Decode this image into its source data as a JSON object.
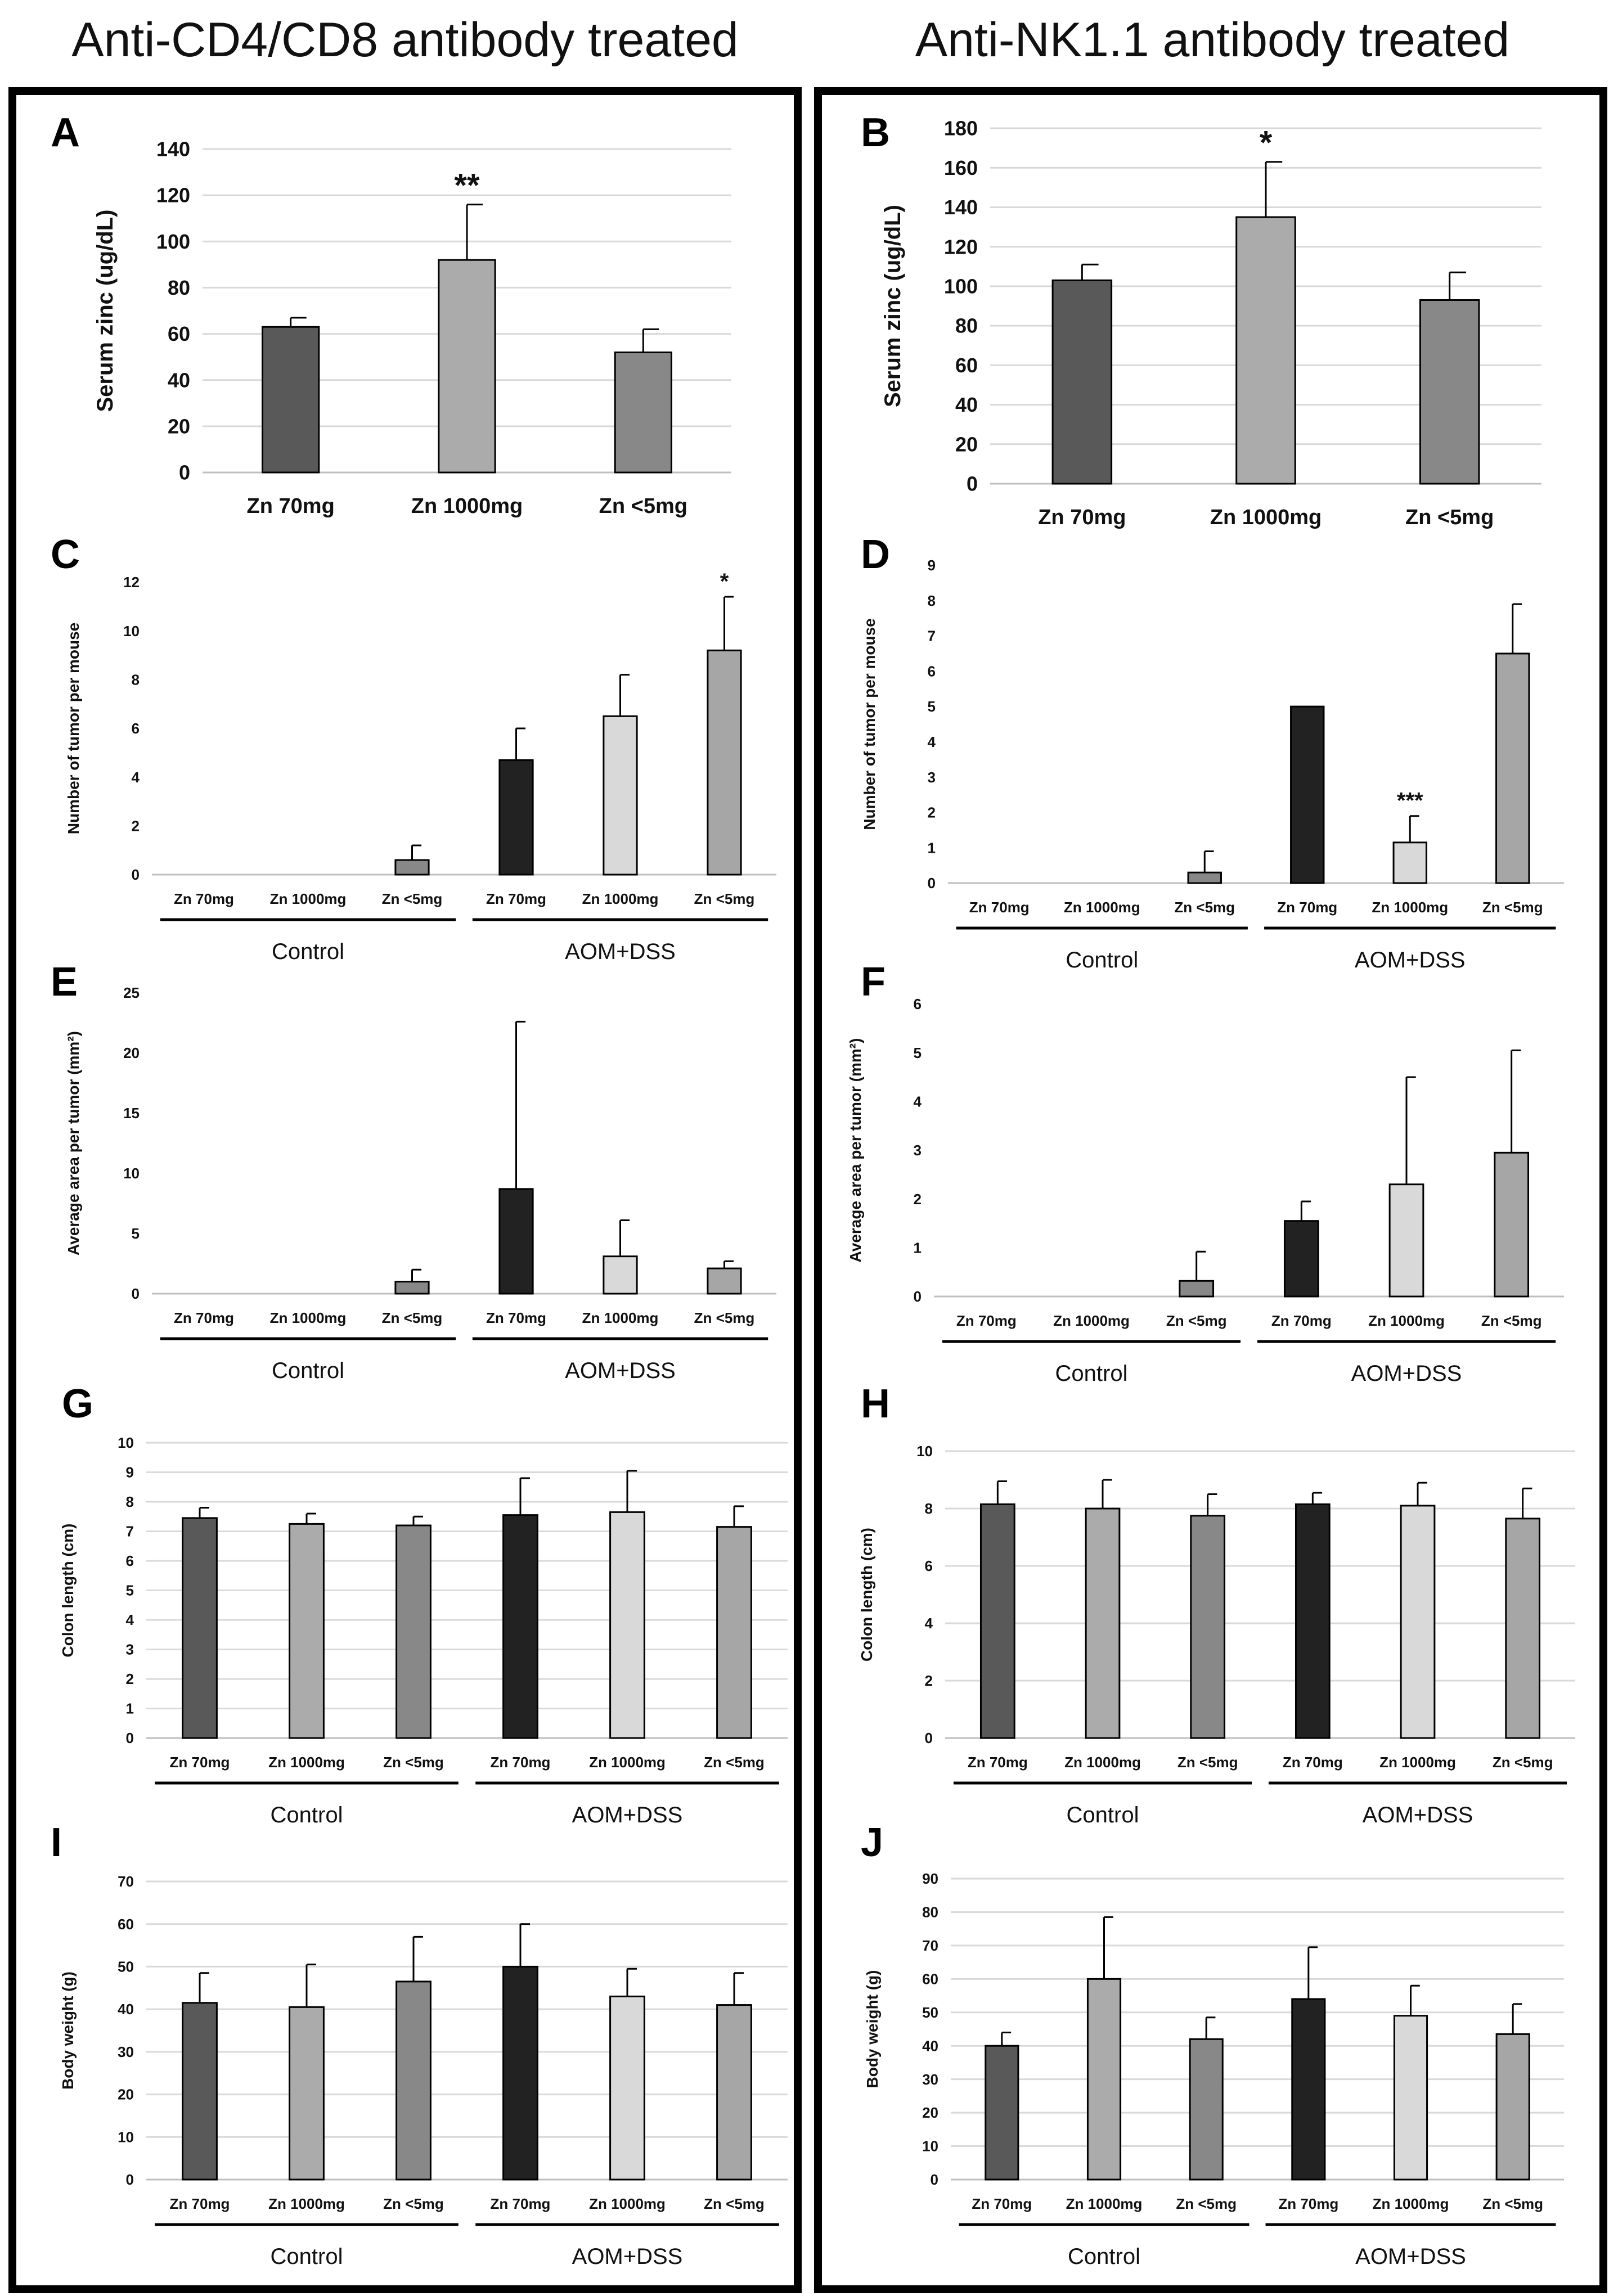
{
  "headers": [
    "Anti-CD4/CD8 antibody treated",
    "Anti-NK1.1 antibody treated"
  ],
  "group_labels": [
    "Control",
    "AOM+DSS"
  ],
  "colors": {
    "frame": "#000000",
    "grid": "#d9d9d9",
    "axis": "#bfbfbf",
    "bar_outline": "#000000",
    "error_bar": "#000000",
    "bars": [
      "#595959",
      "#ababab",
      "#888888",
      "#222222",
      "#d9d9d9",
      "#a6a6a6"
    ]
  },
  "chart_data": [
    {
      "panel": "A",
      "type": "bar",
      "ylabel": "Serum zinc (ug/dL)",
      "ylim": [
        0,
        140
      ],
      "yticks": [
        0,
        20,
        40,
        60,
        80,
        100,
        120,
        140
      ],
      "grid": true,
      "grouped": false,
      "categories": [
        "Zn 70mg",
        "Zn 1000mg",
        "Zn <5mg"
      ],
      "values": [
        63,
        92,
        52
      ],
      "errors": [
        4,
        24,
        10
      ],
      "sig": [
        "",
        "**",
        ""
      ]
    },
    {
      "panel": "B",
      "type": "bar",
      "ylabel": "Serum zinc (ug/dL)",
      "ylim": [
        0,
        180
      ],
      "yticks": [
        0,
        20,
        40,
        60,
        80,
        100,
        120,
        140,
        160,
        180
      ],
      "grid": true,
      "grouped": false,
      "categories": [
        "Zn 70mg",
        "Zn 1000mg",
        "Zn <5mg"
      ],
      "values": [
        103,
        135,
        93
      ],
      "errors": [
        8,
        28,
        14
      ],
      "sig": [
        "",
        "*",
        ""
      ]
    },
    {
      "panel": "C",
      "type": "bar",
      "ylabel": "Number of tumor per mouse",
      "ylim": [
        0,
        12
      ],
      "yticks": [
        0,
        2,
        4,
        6,
        8,
        10,
        12
      ],
      "grid": false,
      "grouped": true,
      "categories": [
        "Zn 70mg",
        "Zn 1000mg",
        "Zn <5mg",
        "Zn 70mg",
        "Zn 1000mg",
        "Zn <5mg"
      ],
      "values": [
        0,
        0,
        0.6,
        4.7,
        6.5,
        9.2
      ],
      "errors": [
        0,
        0,
        0.6,
        1.3,
        1.7,
        2.2
      ],
      "sig": [
        "",
        "",
        "",
        "",
        "",
        "*"
      ]
    },
    {
      "panel": "D",
      "type": "bar",
      "ylabel": "Number of tumor per mouse",
      "ylim": [
        0,
        9
      ],
      "yticks": [
        0,
        1,
        2,
        3,
        4,
        5,
        6,
        7,
        8,
        9
      ],
      "grid": false,
      "grouped": true,
      "categories": [
        "Zn 70mg",
        "Zn 1000mg",
        "Zn <5mg",
        "Zn 70mg",
        "Zn 1000mg",
        "Zn <5mg"
      ],
      "values": [
        0,
        0,
        0.3,
        5.0,
        1.15,
        6.5
      ],
      "errors": [
        0,
        0,
        0.6,
        0,
        0.75,
        1.4
      ],
      "sig": [
        "",
        "",
        "",
        "",
        "***",
        ""
      ]
    },
    {
      "panel": "E",
      "type": "bar",
      "ylabel": "Average area per tumor (mm²)",
      "ylim": [
        0,
        25
      ],
      "yticks": [
        0,
        5,
        10,
        15,
        20,
        25
      ],
      "grid": false,
      "grouped": true,
      "categories": [
        "Zn 70mg",
        "Zn 1000mg",
        "Zn <5mg",
        "Zn 70mg",
        "Zn 1000mg",
        "Zn <5mg"
      ],
      "values": [
        0,
        0,
        1.0,
        8.7,
        3.1,
        2.1
      ],
      "errors": [
        0,
        0,
        1.0,
        13.9,
        3.0,
        0.6
      ],
      "sig": [
        "",
        "",
        "",
        "",
        "",
        ""
      ]
    },
    {
      "panel": "F",
      "type": "bar",
      "ylabel": "Average area per tumor (mm²)",
      "ylim": [
        0,
        6
      ],
      "yticks": [
        0,
        1,
        2,
        3,
        4,
        5,
        6
      ],
      "grid": false,
      "grouped": true,
      "categories": [
        "Zn 70mg",
        "Zn 1000mg",
        "Zn <5mg",
        "Zn 70mg",
        "Zn 1000mg",
        "Zn <5mg"
      ],
      "values": [
        0,
        0,
        0.32,
        1.55,
        2.3,
        2.95
      ],
      "errors": [
        0,
        0,
        0.6,
        0.4,
        2.2,
        2.1
      ],
      "sig": [
        "",
        "",
        "",
        "",
        "",
        ""
      ]
    },
    {
      "panel": "G",
      "type": "bar",
      "ylabel": "Colon length (cm)",
      "ylim": [
        0,
        10
      ],
      "yticks": [
        0,
        1,
        2,
        3,
        4,
        5,
        6,
        7,
        8,
        9,
        10
      ],
      "grid": true,
      "grouped": true,
      "categories": [
        "Zn 70mg",
        "Zn 1000mg",
        "Zn <5mg",
        "Zn 70mg",
        "Zn 1000mg",
        "Zn <5mg"
      ],
      "values": [
        7.45,
        7.25,
        7.2,
        7.55,
        7.65,
        7.15
      ],
      "errors": [
        0.35,
        0.35,
        0.3,
        1.25,
        1.4,
        0.7
      ],
      "sig": [
        "",
        "",
        "",
        "",
        "",
        ""
      ]
    },
    {
      "panel": "H",
      "type": "bar",
      "ylabel": "Colon length (cm)",
      "ylim": [
        0,
        10
      ],
      "yticks": [
        0,
        2,
        4,
        6,
        8,
        10
      ],
      "grid": true,
      "grouped": true,
      "categories": [
        "Zn 70mg",
        "Zn 1000mg",
        "Zn <5mg",
        "Zn 70mg",
        "Zn 1000mg",
        "Zn <5mg"
      ],
      "values": [
        8.15,
        8.0,
        7.75,
        8.15,
        8.1,
        7.65
      ],
      "errors": [
        0.8,
        1.0,
        0.75,
        0.4,
        0.8,
        1.05
      ],
      "sig": [
        "",
        "",
        "",
        "",
        "",
        ""
      ]
    },
    {
      "panel": "I",
      "type": "bar",
      "ylabel": "Body weight (g)",
      "ylim": [
        0,
        70
      ],
      "yticks": [
        0,
        10,
        20,
        30,
        40,
        50,
        60,
        70
      ],
      "grid": true,
      "grouped": true,
      "categories": [
        "Zn 70mg",
        "Zn 1000mg",
        "Zn <5mg",
        "Zn 70mg",
        "Zn 1000mg",
        "Zn <5mg"
      ],
      "values": [
        41.5,
        40.5,
        46.5,
        50,
        43,
        41
      ],
      "errors": [
        7,
        10,
        10.5,
        10,
        6.5,
        7.5
      ],
      "sig": [
        "",
        "",
        "",
        "",
        "",
        ""
      ]
    },
    {
      "panel": "J",
      "type": "bar",
      "ylabel": "Body weight (g)",
      "ylim": [
        0,
        90
      ],
      "yticks": [
        0,
        10,
        20,
        30,
        40,
        50,
        60,
        70,
        80,
        90
      ],
      "grid": true,
      "grouped": true,
      "categories": [
        "Zn 70mg",
        "Zn 1000mg",
        "Zn <5mg",
        "Zn 70mg",
        "Zn 1000mg",
        "Zn <5mg"
      ],
      "values": [
        40,
        60,
        42,
        54,
        49,
        43.5
      ],
      "errors": [
        4,
        18.5,
        6.5,
        15.5,
        9,
        9
      ],
      "sig": [
        "",
        "",
        "",
        "",
        "",
        ""
      ]
    }
  ]
}
